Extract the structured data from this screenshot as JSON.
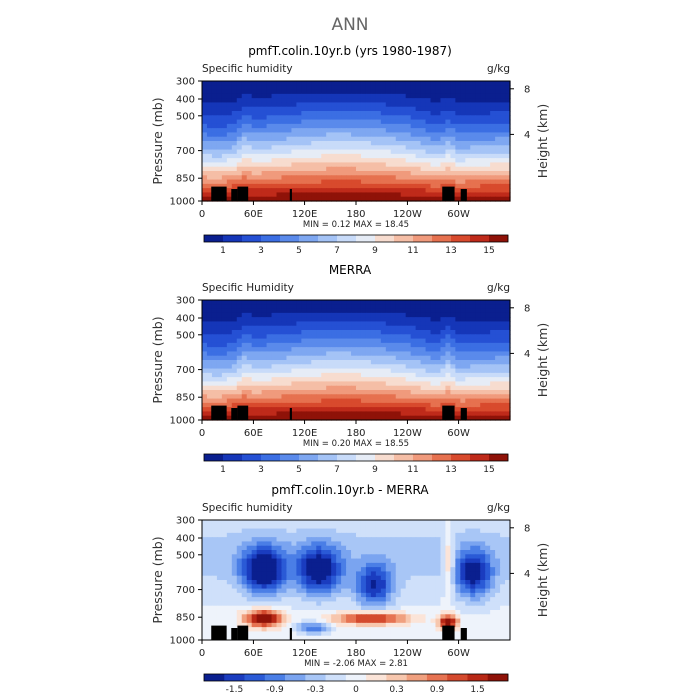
{
  "page_title": "ANN",
  "chart_data": [
    {
      "type": "heatmap",
      "title": "pmfT.colin.10yr.b (yrs 1980-1987)",
      "left_label": "Specific humidity",
      "units": "g/kg",
      "ylabel": "Pressure (mb)",
      "right_label": "Height (km)",
      "yticks": [
        "300",
        "400",
        "500",
        "700",
        "850",
        "1000"
      ],
      "xticks": [
        "0",
        "60E",
        "120E",
        "180",
        "120W",
        "60W"
      ],
      "height_ticks": [
        "8",
        "4"
      ],
      "stats": "MIN =   0.12   MAX =   18.45",
      "colorbar_labels": [
        "1",
        "3",
        "5",
        "7",
        "9",
        "11",
        "13",
        "15"
      ],
      "colorbar_range": [
        0,
        16
      ],
      "palette": [
        "#0a1f8f",
        "#1536b8",
        "#2550d4",
        "#3b6ee3",
        "#5a8aeb",
        "#7ea7f1",
        "#a4c3f6",
        "#c8dbf9",
        "#e6ecf6",
        "#f7dccf",
        "#f5bea6",
        "#f09a7c",
        "#e6714f",
        "#d84a2d",
        "#bf2a1a",
        "#8f1208"
      ]
    },
    {
      "type": "heatmap",
      "title": "MERRA",
      "left_label": "Specific Humidity",
      "units": "g/kg",
      "ylabel": "Pressure (mb)",
      "right_label": "Height (km)",
      "yticks": [
        "300",
        "400",
        "500",
        "700",
        "850",
        "1000"
      ],
      "xticks": [
        "0",
        "60E",
        "120E",
        "180",
        "120W",
        "60W"
      ],
      "height_ticks": [
        "8",
        "4"
      ],
      "stats": "MIN =   0.20   MAX =   18.55",
      "colorbar_labels": [
        "1",
        "3",
        "5",
        "7",
        "9",
        "11",
        "13",
        "15"
      ],
      "colorbar_range": [
        0,
        16
      ],
      "palette": [
        "#0a1f8f",
        "#1536b8",
        "#2550d4",
        "#3b6ee3",
        "#5a8aeb",
        "#7ea7f1",
        "#a4c3f6",
        "#c8dbf9",
        "#e6ecf6",
        "#f7dccf",
        "#f5bea6",
        "#f09a7c",
        "#e6714f",
        "#d84a2d",
        "#bf2a1a",
        "#8f1208"
      ]
    },
    {
      "type": "heatmap",
      "title": "pmfT.colin.10yr.b - MERRA",
      "left_label": "Specific humidity",
      "units": "g/kg",
      "ylabel": "Pressure (mb)",
      "right_label": "Height (km)",
      "yticks": [
        "300",
        "400",
        "500",
        "700",
        "850",
        "1000"
      ],
      "xticks": [
        "0",
        "60E",
        "120E",
        "180",
        "120W",
        "60W"
      ],
      "height_ticks": [
        "8",
        "4"
      ],
      "stats": "MIN =  -2.06   MAX =   2.81",
      "colorbar_labels": [
        "-1.5",
        "-0.9",
        "-0.3",
        "0",
        "0.3",
        "0.9",
        "1.5"
      ],
      "colorbar_range": [
        -2.0,
        2.0
      ],
      "palette": [
        "#0a1f8f",
        "#1a3cbf",
        "#2a5ad6",
        "#4a7ee6",
        "#7aa4f0",
        "#a8c6f6",
        "#cfe0fa",
        "#eef3fb",
        "#fbe4d8",
        "#f7c7ae",
        "#f0a07f",
        "#e67352",
        "#d44a2e",
        "#b82816",
        "#8f1208"
      ]
    }
  ]
}
